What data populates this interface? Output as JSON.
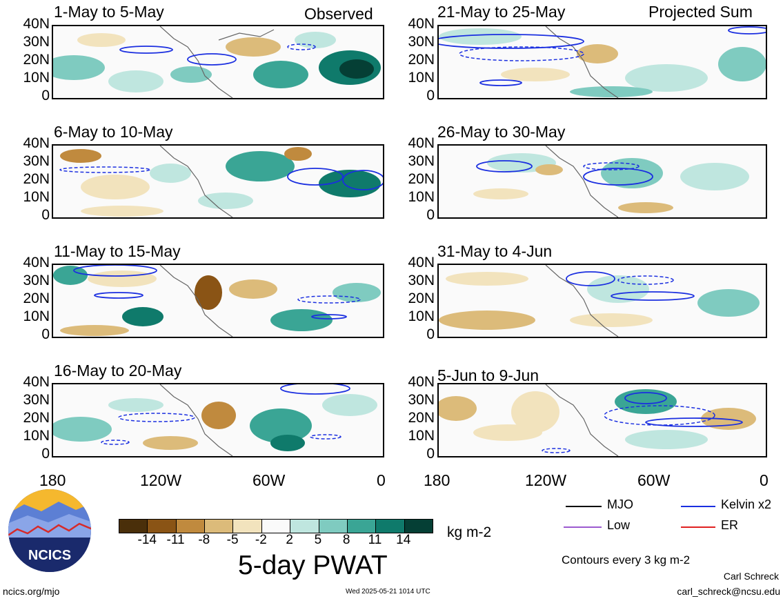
{
  "panels": [
    {
      "title": "1-May to 5-May",
      "tag": "Observed"
    },
    {
      "title": "6-May to 10-May",
      "tag": ""
    },
    {
      "title": "11-May to 15-May",
      "tag": ""
    },
    {
      "title": "16-May to 20-May",
      "tag": ""
    },
    {
      "title": "21-May to 25-May",
      "tag": "Projected Sum"
    },
    {
      "title": "26-May to 30-May",
      "tag": ""
    },
    {
      "title": "31-May to 4-Jun",
      "tag": ""
    },
    {
      "title": "5-Jun to 9-Jun",
      "tag": ""
    }
  ],
  "lat_labels": [
    "40N",
    "30N",
    "20N",
    "10N",
    "0"
  ],
  "lon_labels": [
    "180",
    "120W",
    "60W",
    "0"
  ],
  "legend": {
    "items": [
      {
        "label": "MJO",
        "color": "#000000"
      },
      {
        "label": "Kelvin x2",
        "color": "#1a2ee0"
      },
      {
        "label": "Low",
        "color": "#9b59d0"
      },
      {
        "label": "ER",
        "color": "#e02020"
      }
    ],
    "contour_note": "Contours every 3 kg m-2"
  },
  "colorbar": {
    "ticks": [
      "-14",
      "-11",
      "-8",
      "-5",
      "-2",
      "2",
      "5",
      "8",
      "11",
      "14"
    ],
    "units": "kg m-2",
    "colors": [
      "#4a2f0a",
      "#8a5415",
      "#c08a3e",
      "#dcbb7a",
      "#f2e3bd",
      "#fafafa",
      "#bfe6df",
      "#7fcbc0",
      "#3aa595",
      "#0f7a6b",
      "#053f35"
    ]
  },
  "product_title": "5-day PWAT",
  "logo_text": "NCICS",
  "footer": {
    "url": "ncics.org/mjo",
    "timestamp": "Wed 2025-05-21 1014 UTC",
    "author": "Carl Schreck",
    "email": "carl_schreck@ncsu.edu"
  }
}
